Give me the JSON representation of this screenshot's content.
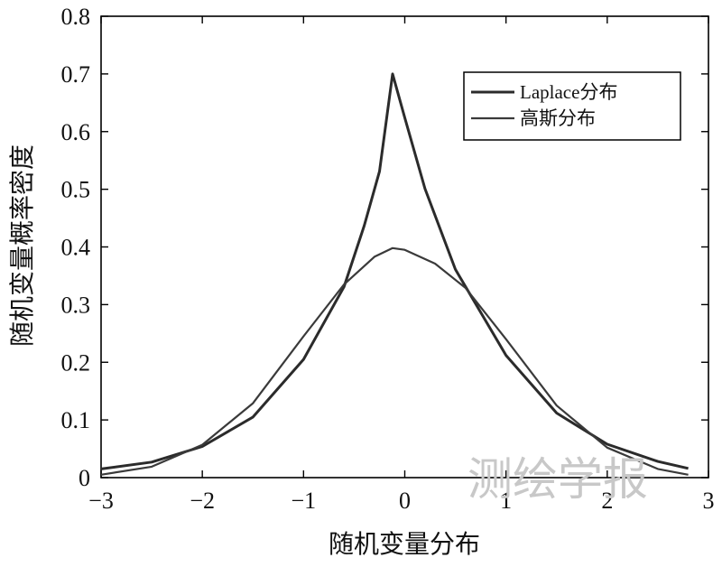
{
  "chart_data": {
    "type": "line",
    "title": "",
    "xlabel": "随机变量分布",
    "ylabel": "随机变量概率密度",
    "xlim": [
      -3,
      3
    ],
    "ylim": [
      0,
      0.8
    ],
    "x_ticks": [
      "−3",
      "−2",
      "−1",
      "0",
      "1",
      "2",
      "3"
    ],
    "y_ticks": [
      "0",
      "0.1",
      "0.2",
      "0.3",
      "0.4",
      "0.5",
      "0.6",
      "0.7",
      "0.8"
    ],
    "grid": false,
    "legend_position": "top-right",
    "series": [
      {
        "name": "Laplace分布",
        "x": [
          -3.0,
          -2.5,
          -2.0,
          -1.5,
          -1.0,
          -0.6,
          -0.4,
          -0.25,
          -0.12,
          0.0,
          0.2,
          0.5,
          1.0,
          1.5,
          2.0,
          2.5,
          2.8
        ],
        "values": [
          0.015,
          0.027,
          0.054,
          0.105,
          0.205,
          0.331,
          0.437,
          0.531,
          0.7,
          0.624,
          0.501,
          0.361,
          0.212,
          0.112,
          0.058,
          0.028,
          0.016
        ]
      },
      {
        "name": "高斯分布",
        "x": [
          -3.0,
          -2.5,
          -2.0,
          -1.5,
          -1.0,
          -0.6,
          -0.3,
          -0.12,
          0.0,
          0.3,
          0.6,
          1.0,
          1.5,
          2.0,
          2.5,
          2.8
        ],
        "values": [
          0.005,
          0.019,
          0.057,
          0.129,
          0.245,
          0.335,
          0.383,
          0.398,
          0.395,
          0.371,
          0.329,
          0.24,
          0.125,
          0.052,
          0.015,
          0.005
        ]
      }
    ]
  },
  "watermark": "测绘学报",
  "colors": {
    "laplace_line": "#2b2b2b",
    "gauss_line": "#3a3a3a",
    "axis": "#000000"
  }
}
